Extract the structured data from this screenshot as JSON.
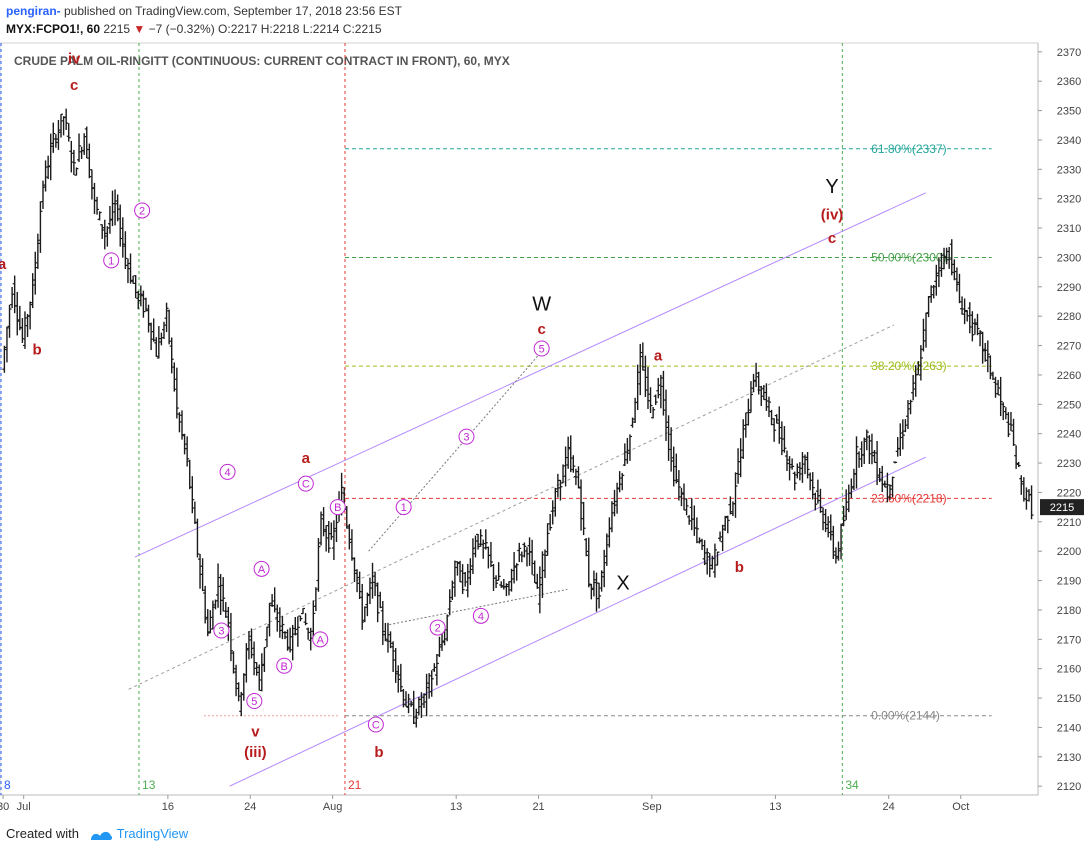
{
  "header": {
    "author": "pengiran-",
    "published_text": " published on TradingView.com, September 17, 2018 23:56 EST",
    "symbol": "MYX:FCPO1!, 60",
    "last": "2215",
    "change": "−7 (−0.32%)",
    "ohlc": "O:2217 H:2218 L:2214 C:2215"
  },
  "footer": {
    "created_with": "Created with",
    "brand": "TradingView"
  },
  "colors": {
    "candle": "#1a1a1a",
    "wave_red": "#b71c1c",
    "wave_purple": "#c026d3",
    "channel": "#b388ff",
    "fib_618": "#26a69a",
    "fib_50": "#43a047",
    "fib_382": "#9cbd1c",
    "fib_236": "#e53935",
    "fib_0": "#888888",
    "axis_text": "#444444"
  },
  "chart_data": {
    "type": "candlestick",
    "title": "CRUDE PALM OIL-RINGITT (CONTINUOUS: CURRENT CONTRACT IN FRONT), 60, MYX",
    "interval": "60",
    "last_price": 2215,
    "ylim": [
      2117,
      2373
    ],
    "y_ticks": [
      2120,
      2130,
      2140,
      2150,
      2160,
      2170,
      2180,
      2190,
      2200,
      2210,
      2220,
      2230,
      2240,
      2250,
      2260,
      2270,
      2280,
      2290,
      2300,
      2310,
      2320,
      2330,
      2340,
      2350,
      2360,
      2370
    ],
    "x_ticks": [
      {
        "label": "30",
        "day": 0
      },
      {
        "label": "Jul",
        "day": 2
      },
      {
        "label": "16",
        "day": 16
      },
      {
        "label": "24",
        "day": 24
      },
      {
        "label": "Aug",
        "day": 32
      },
      {
        "label": "13",
        "day": 44
      },
      {
        "label": "21",
        "day": 52
      },
      {
        "label": "Sep",
        "day": 63
      },
      {
        "label": "13",
        "day": 75
      },
      {
        "label": "24",
        "day": 86
      },
      {
        "label": "Oct",
        "day": 93
      }
    ],
    "xlim_days": [
      -0.3,
      100.5
    ],
    "vertical_markers": [
      {
        "label": "8",
        "day": -0.2,
        "color": "#2962ff",
        "style": "dashed"
      },
      {
        "label": "13",
        "day": 13.2,
        "color": "#4caf50",
        "style": "dashed"
      },
      {
        "label": "21",
        "day": 33.2,
        "color": "#e53935",
        "style": "dashed"
      },
      {
        "label": "34",
        "day": 81.5,
        "color": "#4caf50",
        "style": "dashed"
      }
    ],
    "price_path": [
      [
        0,
        2262
      ],
      [
        1,
        2290
      ],
      [
        2,
        2272
      ],
      [
        3,
        2290
      ],
      [
        4,
        2325
      ],
      [
        5,
        2340
      ],
      [
        6,
        2348
      ],
      [
        7,
        2330
      ],
      [
        8,
        2342
      ],
      [
        9,
        2318
      ],
      [
        10,
        2308
      ],
      [
        11,
        2318
      ],
      [
        12,
        2300
      ],
      [
        13,
        2288
      ],
      [
        14,
        2282
      ],
      [
        15,
        2268
      ],
      [
        16,
        2280
      ],
      [
        17,
        2248
      ],
      [
        18,
        2230
      ],
      [
        19,
        2200
      ],
      [
        20,
        2172
      ],
      [
        21,
        2190
      ],
      [
        22,
        2175
      ],
      [
        23,
        2148
      ],
      [
        24,
        2170
      ],
      [
        25,
        2155
      ],
      [
        26,
        2182
      ],
      [
        27,
        2175
      ],
      [
        28,
        2168
      ],
      [
        29,
        2180
      ],
      [
        30,
        2170
      ],
      [
        31,
        2210
      ],
      [
        32,
        2202
      ],
      [
        33,
        2220
      ],
      [
        34,
        2200
      ],
      [
        35,
        2178
      ],
      [
        36,
        2190
      ],
      [
        37,
        2174
      ],
      [
        38,
        2165
      ],
      [
        39,
        2150
      ],
      [
        40,
        2144
      ],
      [
        41,
        2150
      ],
      [
        42,
        2160
      ],
      [
        43,
        2172
      ],
      [
        44,
        2195
      ],
      [
        45,
        2188
      ],
      [
        46,
        2205
      ],
      [
        47,
        2200
      ],
      [
        48,
        2190
      ],
      [
        49,
        2186
      ],
      [
        50,
        2198
      ],
      [
        51,
        2202
      ],
      [
        52,
        2185
      ],
      [
        53,
        2207
      ],
      [
        54,
        2222
      ],
      [
        55,
        2233
      ],
      [
        56,
        2222
      ],
      [
        57,
        2190
      ],
      [
        58,
        2185
      ],
      [
        59,
        2210
      ],
      [
        60,
        2225
      ],
      [
        61,
        2240
      ],
      [
        62,
        2265
      ],
      [
        63,
        2248
      ],
      [
        64,
        2258
      ],
      [
        65,
        2230
      ],
      [
        66,
        2218
      ],
      [
        67,
        2210
      ],
      [
        68,
        2200
      ],
      [
        69,
        2195
      ],
      [
        70,
        2208
      ],
      [
        71,
        2218
      ],
      [
        72,
        2240
      ],
      [
        73,
        2260
      ],
      [
        74,
        2252
      ],
      [
        75,
        2244
      ],
      [
        76,
        2235
      ],
      [
        77,
        2225
      ],
      [
        78,
        2232
      ],
      [
        79,
        2218
      ],
      [
        80,
        2210
      ],
      [
        81,
        2198
      ],
      [
        82,
        2215
      ],
      [
        83,
        2233
      ],
      [
        84,
        2238
      ],
      [
        85,
        2228
      ],
      [
        86,
        2220
      ],
      [
        87,
        2235
      ],
      [
        88,
        2248
      ],
      [
        89,
        2262
      ],
      [
        90,
        2285
      ],
      [
        91,
        2298
      ],
      [
        92,
        2302
      ],
      [
        93,
        2285
      ],
      [
        94,
        2278
      ],
      [
        95,
        2272
      ],
      [
        96,
        2262
      ],
      [
        97,
        2250
      ],
      [
        98,
        2240
      ],
      [
        99,
        2222
      ],
      [
        100,
        2215
      ]
    ],
    "fib_levels": [
      {
        "label": "61.80%(2337)",
        "price": 2337
      },
      {
        "label": "50.00%(2300)",
        "price": 2300
      },
      {
        "label": "38.20%(2263)",
        "price": 2263
      },
      {
        "label": "23.60%(2218)",
        "price": 2218
      },
      {
        "label": "0.00%(2144)",
        "price": 2144
      }
    ],
    "wave_labels_red": [
      {
        "text": "iv",
        "day": 6.9,
        "price": 2366
      },
      {
        "text": "c",
        "day": 6.9,
        "price": 2357
      },
      {
        "text": "a",
        "day": -0.1,
        "price": 2296
      },
      {
        "text": "b",
        "day": 3.3,
        "price": 2267
      },
      {
        "text": "a",
        "day": 29.4,
        "price": 2230
      },
      {
        "text": "v",
        "day": 24.5,
        "price": 2137
      },
      {
        "text": "(iii)",
        "day": 24.5,
        "price": 2130
      },
      {
        "text": "b",
        "day": 36.5,
        "price": 2130
      },
      {
        "text": "c",
        "day": 52.3,
        "price": 2274
      },
      {
        "text": "a",
        "day": 63.6,
        "price": 2265
      },
      {
        "text": "b",
        "day": 71.5,
        "price": 2193
      },
      {
        "text": "(iv)",
        "day": 80.5,
        "price": 2313
      },
      {
        "text": "c",
        "day": 80.5,
        "price": 2305
      }
    ],
    "wave_labels_black": [
      {
        "text": "W",
        "day": 52.3,
        "price": 2282
      },
      {
        "text": "X",
        "day": 60.2,
        "price": 2187
      },
      {
        "text": "Y",
        "day": 80.5,
        "price": 2322
      }
    ],
    "wave_labels_circled": [
      {
        "text": "1",
        "day": 10.5,
        "price": 2299
      },
      {
        "text": "2",
        "day": 13.5,
        "price": 2316
      },
      {
        "text": "4",
        "day": 21.8,
        "price": 2227
      },
      {
        "text": "3",
        "day": 21.2,
        "price": 2173
      },
      {
        "text": "A",
        "day": 25.1,
        "price": 2194
      },
      {
        "text": "C",
        "day": 29.4,
        "price": 2223
      },
      {
        "text": "B",
        "day": 32.5,
        "price": 2215
      },
      {
        "text": "5",
        "day": 24.4,
        "price": 2149
      },
      {
        "text": "B",
        "day": 27.3,
        "price": 2161
      },
      {
        "text": "A",
        "day": 30.8,
        "price": 2170
      },
      {
        "text": "C",
        "day": 36.2,
        "price": 2141
      },
      {
        "text": "1",
        "day": 38.9,
        "price": 2215
      },
      {
        "text": "3",
        "day": 45.0,
        "price": 2239
      },
      {
        "text": "2",
        "day": 42.2,
        "price": 2174
      },
      {
        "text": "4",
        "day": 46.4,
        "price": 2178
      },
      {
        "text": "5",
        "day": 52.3,
        "price": 2269
      }
    ]
  }
}
